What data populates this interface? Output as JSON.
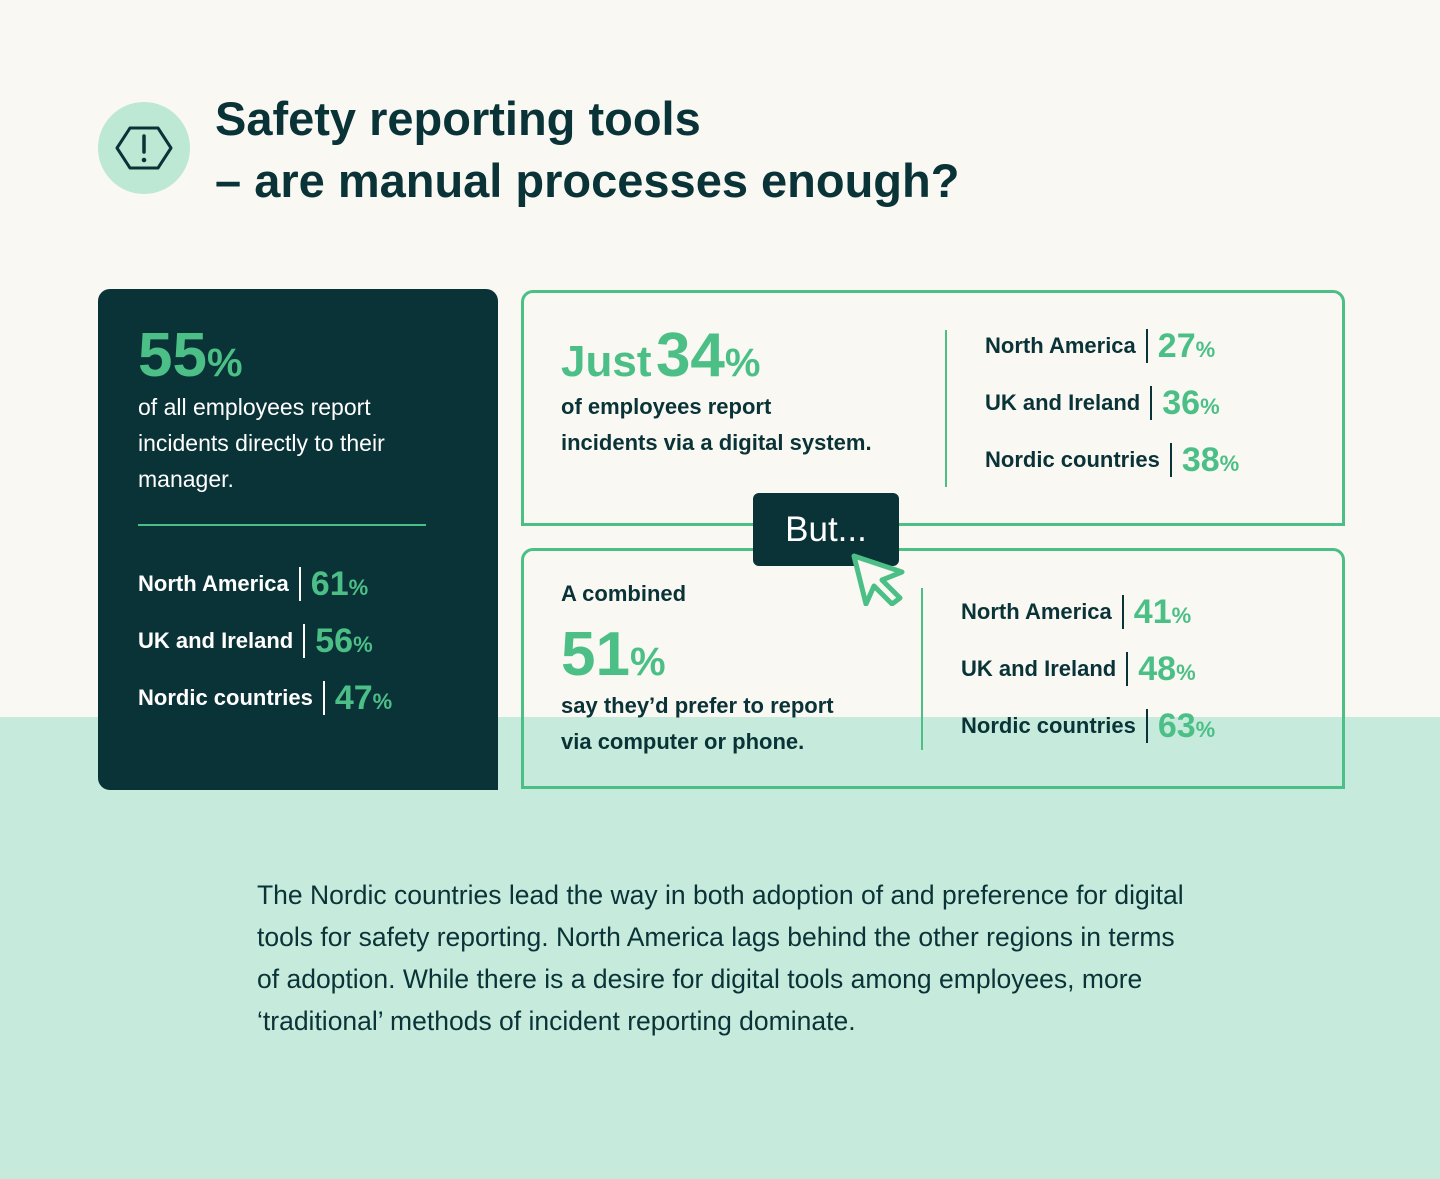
{
  "header": {
    "title_lines": [
      "Safety reporting tools",
      "– are manual processes enough?"
    ]
  },
  "cards": [
    {
      "stat": {
        "number": 55,
        "unit": "%"
      },
      "text_lines": [
        "of all employees report",
        "incidents directly to their",
        "manager."
      ],
      "regions": [
        {
          "name": "North America",
          "number": 61,
          "unit": "%"
        },
        {
          "name": "UK and Ireland",
          "number": 56,
          "unit": "%"
        },
        {
          "name": "Nordic countries",
          "number": 47,
          "unit": "%"
        }
      ]
    },
    {
      "stat": {
        "prefix": "Just",
        "number": 34,
        "unit": "%"
      },
      "text_lines": [
        "of employees report",
        "incidents via a digital system."
      ],
      "regions": [
        {
          "name": "North America",
          "number": 27,
          "unit": "%"
        },
        {
          "name": "UK and Ireland",
          "number": 36,
          "unit": "%"
        },
        {
          "name": "Nordic countries",
          "number": 38,
          "unit": "%"
        }
      ]
    },
    {
      "intro": "A combined",
      "stat": {
        "number": 51,
        "unit": "%"
      },
      "text_lines": [
        "say they’d prefer to report",
        "via computer or phone."
      ],
      "regions": [
        {
          "name": "North America",
          "number": 41,
          "unit": "%"
        },
        {
          "name": "UK and Ireland",
          "number": 48,
          "unit": "%"
        },
        {
          "name": "Nordic countries",
          "number": 63,
          "unit": "%"
        }
      ]
    }
  ],
  "callout": "But...",
  "footer": {
    "text": "The Nordic countries lead the way in both adoption of and preference for digital tools for safety reporting. North America lags behind the other regions in terms of adoption. While there is a desire for digital tools among employees, more ‘traditional’ methods of incident reporting dominate."
  }
}
